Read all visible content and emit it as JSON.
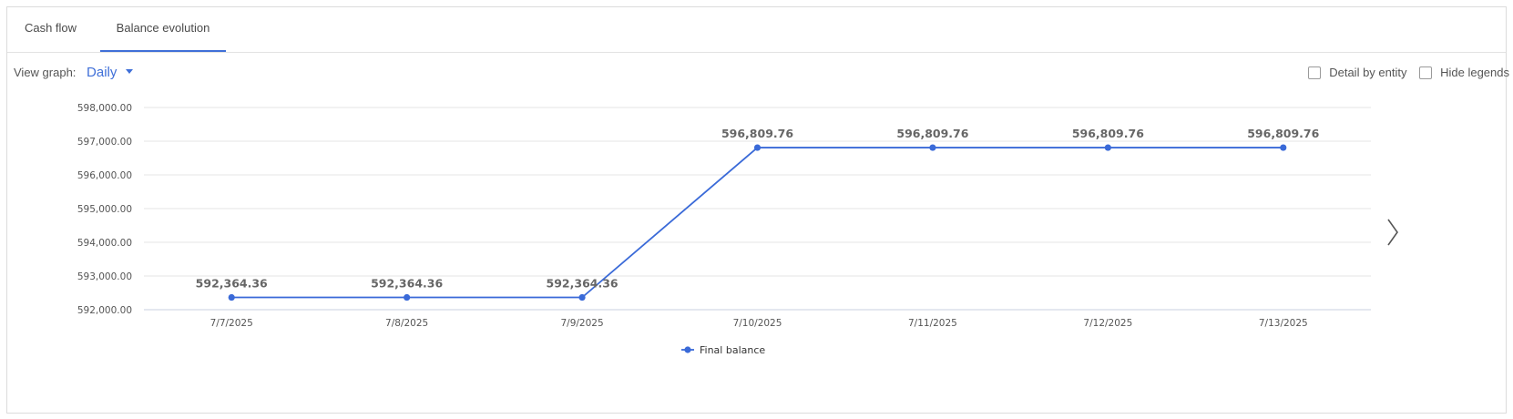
{
  "tabs": [
    {
      "label": "Cash flow",
      "active": false
    },
    {
      "label": "Balance evolution",
      "active": true
    }
  ],
  "controls": {
    "view_label": "View graph:",
    "view_value": "Daily",
    "detail_label": "Detail by entity",
    "hide_legends_label": "Hide legends"
  },
  "colors": {
    "accent": "#3f6fd8",
    "line": "#3a6ad8"
  },
  "chart_data": {
    "type": "line",
    "categories": [
      "7/7/2025",
      "7/8/2025",
      "7/9/2025",
      "7/10/2025",
      "7/11/2025",
      "7/12/2025",
      "7/13/2025"
    ],
    "series": [
      {
        "name": "Final balance",
        "values": [
          592364.36,
          592364.36,
          592364.36,
          596809.76,
          596809.76,
          596809.76,
          596809.76
        ]
      }
    ],
    "data_labels": [
      "592,364.36",
      "592,364.36",
      "592,364.36",
      "596,809.76",
      "596,809.76",
      "596,809.76",
      "596,809.76"
    ],
    "y_ticks": [
      592000,
      593000,
      594000,
      595000,
      596000,
      597000,
      598000
    ],
    "y_tick_labels": [
      "592,000.00",
      "593,000.00",
      "594,000.00",
      "595,000.00",
      "596,000.00",
      "597,000.00",
      "598,000.00"
    ],
    "ylim": [
      592000,
      598000
    ],
    "grid": true,
    "legend": "bottom-center"
  }
}
